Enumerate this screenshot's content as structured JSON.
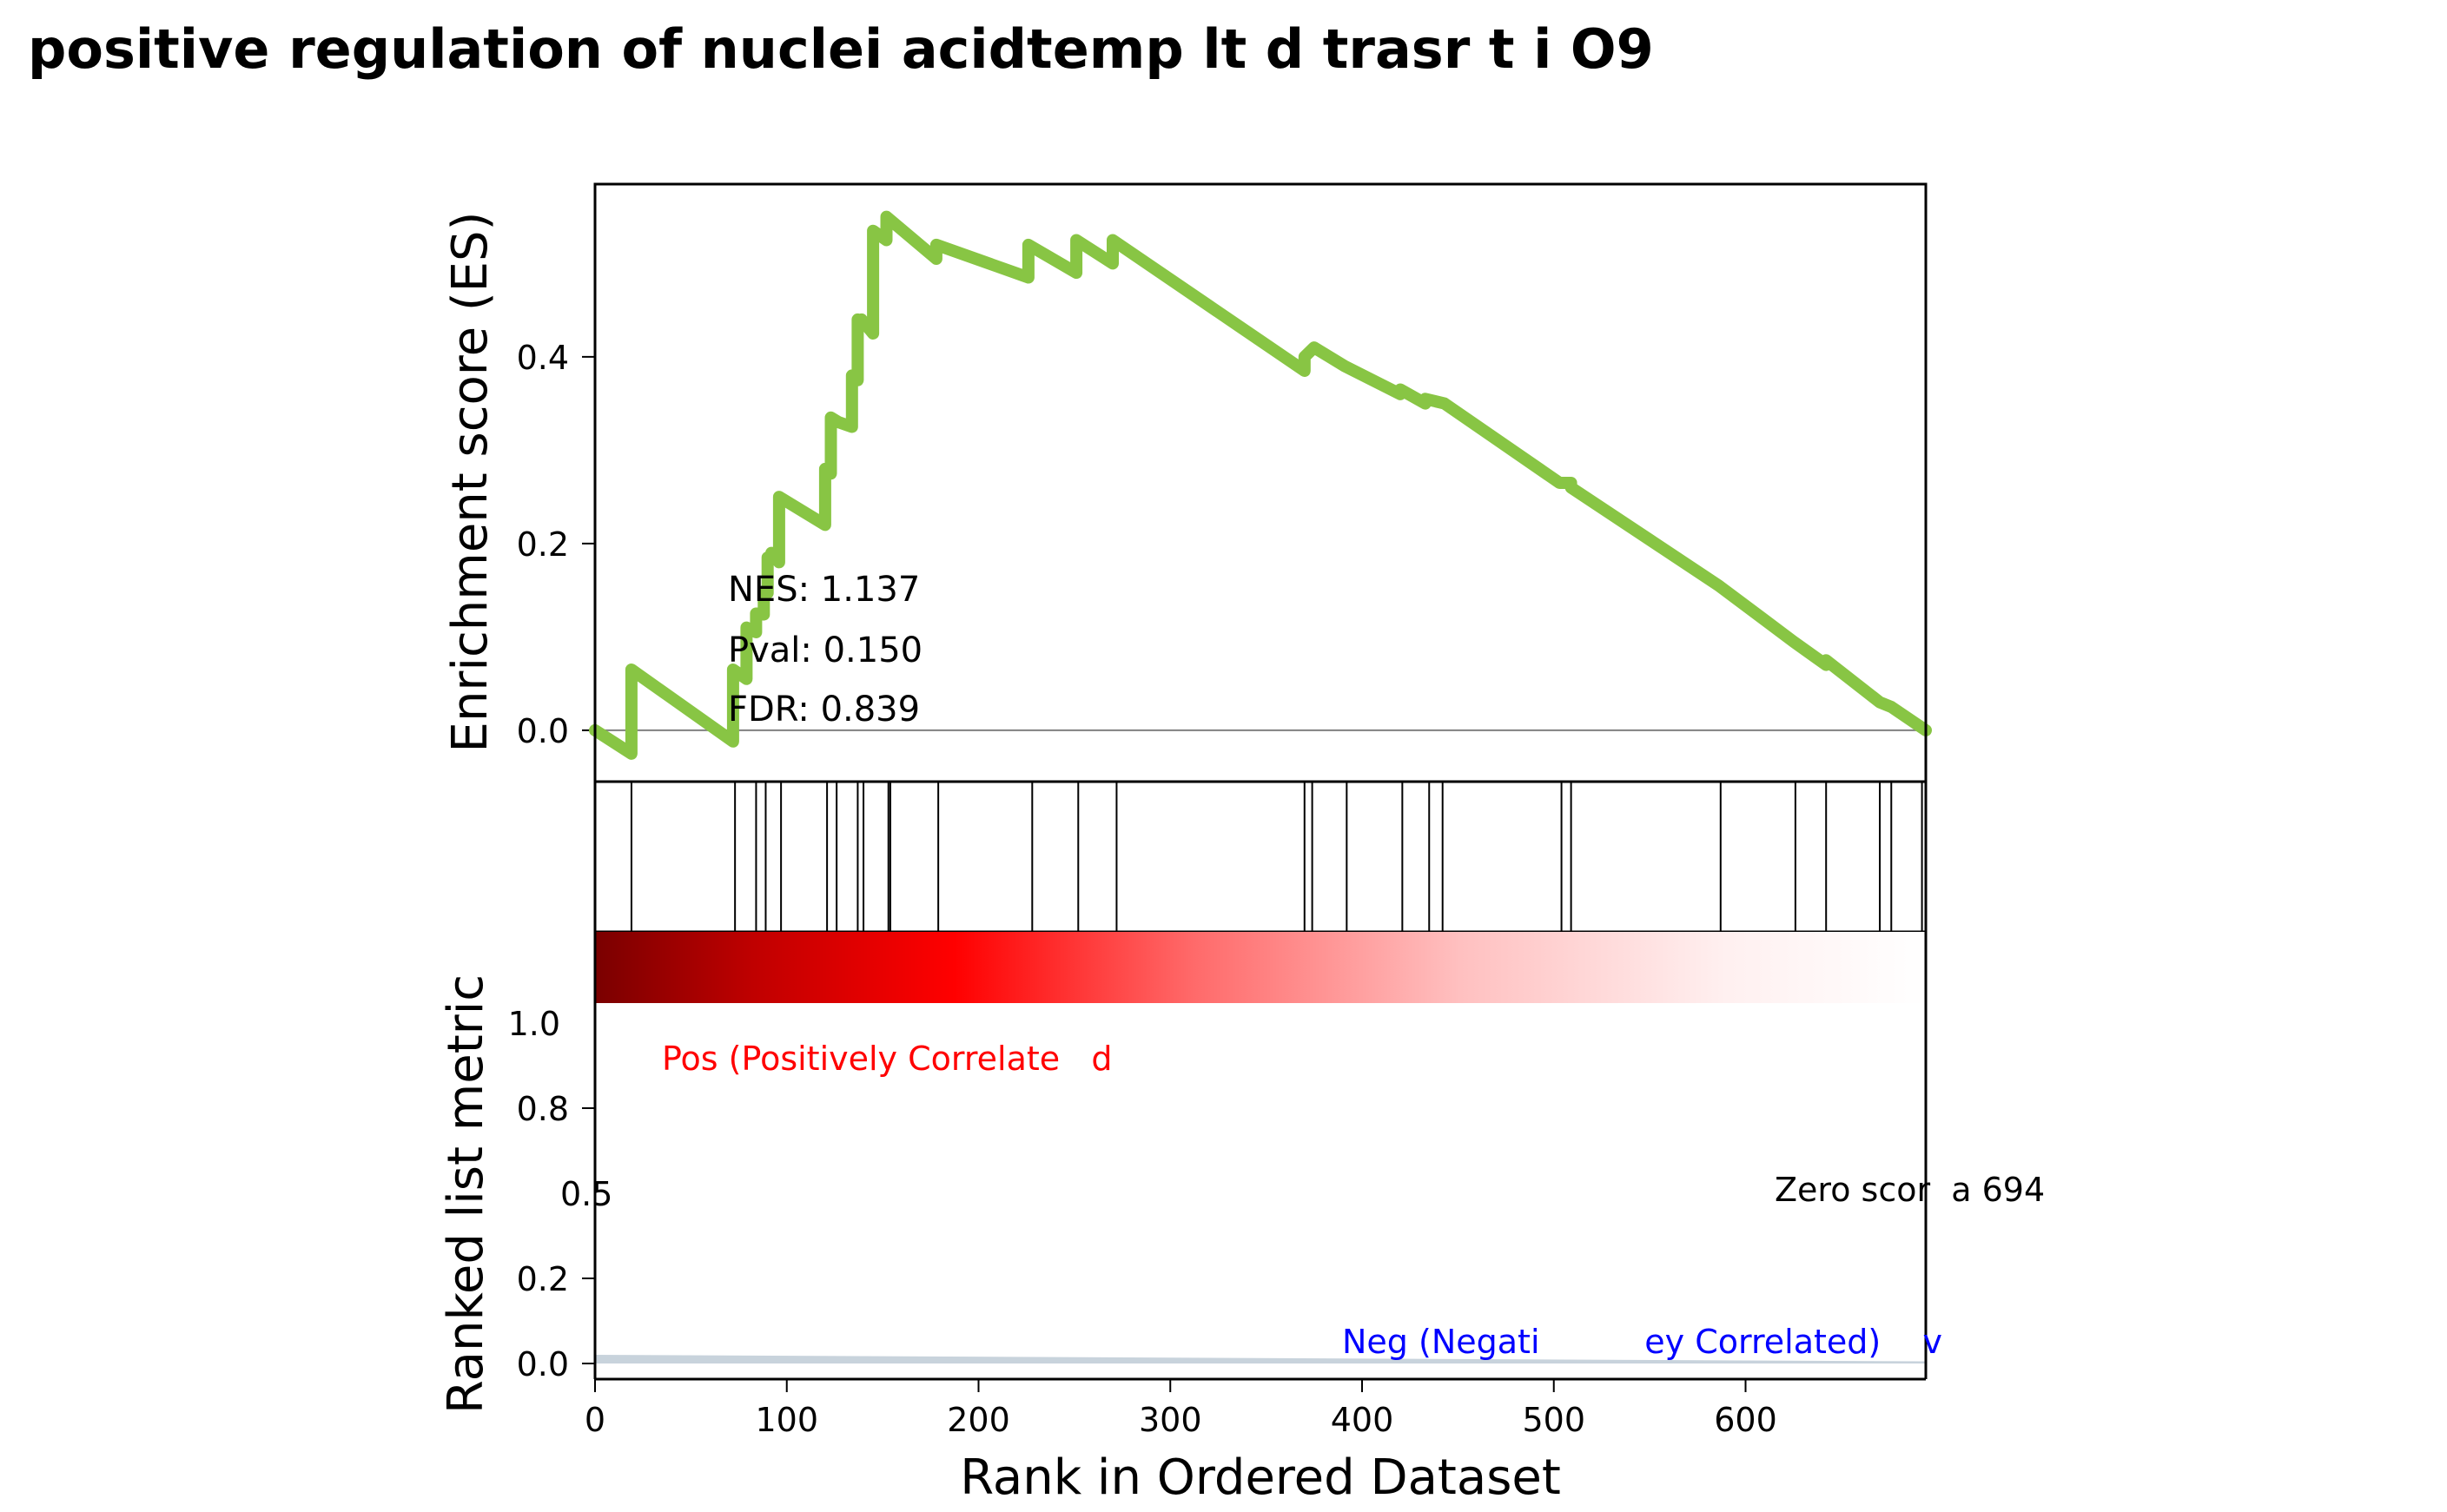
{
  "chart_data": {
    "title": "positive regulation of nuclei acidtemp lt d trasr t i O9",
    "panels": [
      {
        "type": "line",
        "ylabel": "Enrichment score (ES)",
        "yticks": [
          "0.0",
          "0.2",
          "0.4"
        ],
        "ylim": [
          -0.055,
          0.585
        ],
        "xlim": [
          0,
          694
        ],
        "line_color": "#88c544",
        "zero_line": true,
        "x": [
          0,
          19,
          19,
          72,
          72,
          79,
          79,
          84,
          84,
          88,
          88,
          90,
          90,
          92,
          92,
          96,
          96,
          120,
          120,
          123,
          123,
          127,
          127,
          134,
          134,
          137,
          137,
          139,
          139,
          145,
          145,
          152,
          152,
          178,
          178,
          226,
          226,
          251,
          251,
          270,
          270,
          370,
          370,
          375,
          375,
          391,
          391,
          420,
          420,
          433,
          433,
          443,
          443,
          503,
          503,
          509,
          509,
          586,
          586,
          625,
          625,
          642,
          642,
          670,
          670,
          676,
          676,
          694
        ],
        "y": [
          0.0,
          -0.025,
          0.065,
          -0.012,
          0.065,
          0.055,
          0.11,
          0.105,
          0.125,
          0.124,
          0.148,
          0.147,
          0.185,
          0.183,
          0.19,
          0.18,
          0.25,
          0.22,
          0.28,
          0.275,
          0.335,
          0.33,
          0.33,
          0.325,
          0.38,
          0.375,
          0.44,
          0.435,
          0.44,
          0.425,
          0.535,
          0.525,
          0.55,
          0.505,
          0.52,
          0.485,
          0.52,
          0.49,
          0.525,
          0.5,
          0.525,
          0.385,
          0.4,
          0.41,
          0.41,
          0.39,
          0.39,
          0.36,
          0.365,
          0.35,
          0.355,
          0.35,
          0.35,
          0.265,
          0.265,
          0.265,
          0.26,
          0.155,
          0.155,
          0.095,
          0.095,
          0.07,
          0.075,
          0.03,
          0.03,
          0.025,
          0.025,
          0.0
        ],
        "annotations": [
          "NES: 1.137",
          "Pval: 0.150",
          "FDR: 0.839"
        ]
      },
      {
        "type": "hits",
        "hit_positions": [
          19,
          73,
          84,
          89,
          97,
          121,
          126,
          137,
          140,
          153,
          154,
          179,
          228,
          252,
          272,
          370,
          374,
          392,
          421,
          435,
          442,
          504,
          509,
          587,
          626,
          642,
          670,
          676,
          692
        ]
      },
      {
        "type": "heatmap",
        "colormap": "seismic-red-half",
        "colors": [
          "#7f0000",
          "#ff0000",
          "#ffffff"
        ]
      },
      {
        "type": "area",
        "ylabel": "Ranked list metric",
        "xlabel": "Rank in Ordered Dataset",
        "yticks": [
          "0.0",
          "0.2",
          "0.5",
          "0.8",
          "1.0"
        ],
        "xticks": [
          "0",
          "100",
          "200",
          "300",
          "400",
          "500",
          "600"
        ],
        "xlim": [
          0,
          694
        ],
        "fill_color": "#c8d3dc",
        "values_start": 0.02,
        "values_end": 0.005,
        "labels": {
          "pos": "Pos (Positively Correlate   d",
          "neg": "Neg (Negati          ey Correlated)    v",
          "zero": "Zero scor  a 694"
        },
        "label_colors": {
          "pos": "#ff0000",
          "neg": "#0000ff",
          "zero": "#000000"
        }
      }
    ]
  }
}
